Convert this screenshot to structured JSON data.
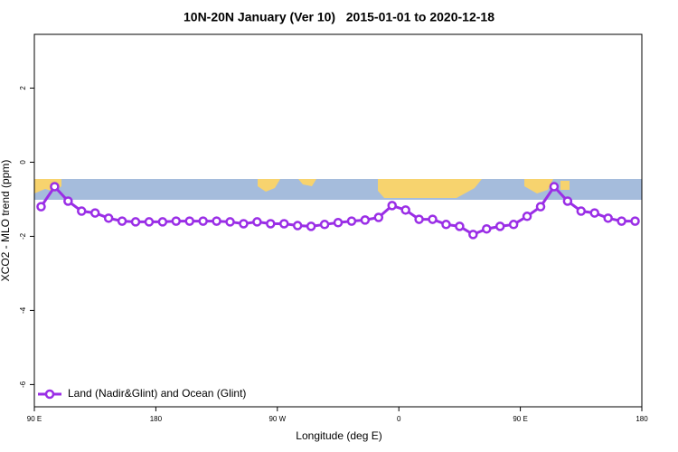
{
  "chart_data": {
    "type": "line",
    "title": "10N-20N January (Ver 10)   2015-01-01 to 2020-12-18",
    "x_label": "Longitude (deg E)",
    "y_label": "XCO2 - MLO trend (ppm)",
    "x": [
      95,
      105,
      115,
      125,
      135,
      145,
      155,
      165,
      175,
      185,
      195,
      205,
      215,
      225,
      235,
      245,
      255,
      265,
      275,
      285,
      295,
      305,
      315,
      325,
      335,
      345,
      355,
      365,
      375,
      385,
      395,
      405,
      415,
      425,
      435,
      445,
      455,
      465,
      475,
      485,
      495,
      505,
      515,
      525,
      535
    ],
    "series": [
      {
        "name": "Land (Nadir&Glint) and Ocean (Glint)",
        "color": "#9a2ee6",
        "values": [
          -1.2,
          -0.66,
          -1.05,
          -1.32,
          -1.37,
          -1.51,
          -1.59,
          -1.61,
          -1.61,
          -1.61,
          -1.59,
          -1.59,
          -1.59,
          -1.59,
          -1.61,
          -1.66,
          -1.61,
          -1.66,
          -1.66,
          -1.71,
          -1.73,
          -1.68,
          -1.63,
          -1.59,
          -1.56,
          -1.49,
          -1.17,
          -1.29,
          -1.54,
          -1.54,
          -1.68,
          -1.73,
          -1.95,
          -1.8,
          -1.73,
          -1.68,
          -1.46,
          -1.2,
          -0.66,
          -1.05,
          -1.32,
          -1.37,
          -1.51,
          -1.59,
          -1.59
        ]
      }
    ],
    "xlim": [
      90,
      540
    ],
    "xticks": [
      {
        "value": 90,
        "label": "90 E"
      },
      180,
      {
        "value": 270,
        "label": "90 W"
      },
      {
        "value": 360,
        "label": "0"
      },
      {
        "value": 450,
        "label": "90 E"
      },
      {
        "value": 540,
        "label": "180"
      }
    ],
    "ylim": [
      -6.6,
      3.45
    ],
    "yticks": [
      -6,
      -4,
      -2,
      0,
      2
    ],
    "legend": "bottom-left"
  }
}
